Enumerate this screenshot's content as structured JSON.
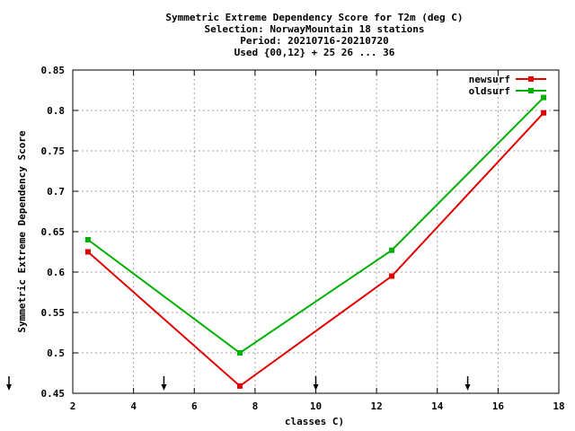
{
  "chart_data": {
    "type": "line",
    "title_lines": [
      "Symmetric Extreme Dependency Score  for T2m (deg C)",
      "Selection: NorwayMountain     18 stations",
      "Period: 20210716-20210720",
      "Used {00,12} + 25 26 ... 36"
    ],
    "xlabel": "classes C)",
    "ylabel": "Symmetric Extreme Dependency Score",
    "xlim": [
      2,
      18
    ],
    "ylim": [
      0.45,
      0.85
    ],
    "x_ticks": [
      "2",
      "4",
      "6",
      "8",
      "10",
      "12",
      "14",
      "16",
      "18"
    ],
    "y_ticks": [
      "0.45",
      "0.5",
      "0.55",
      "0.6",
      "0.65",
      "0.7",
      "0.75",
      "0.8",
      "0.85"
    ],
    "grid": true,
    "legend_position": "top-right",
    "class_boundary_arrows": [
      0,
      5,
      10,
      15
    ],
    "series": [
      {
        "name": "newsurf",
        "color": "#e00000",
        "x": [
          2.5,
          7.5,
          12.5,
          17.5
        ],
        "y": [
          0.625,
          0.459,
          0.595,
          0.797
        ]
      },
      {
        "name": "oldsurf",
        "color": "#00b000",
        "x": [
          2.5,
          7.5,
          12.5,
          17.5
        ],
        "y": [
          0.64,
          0.5,
          0.627,
          0.816
        ]
      }
    ]
  }
}
